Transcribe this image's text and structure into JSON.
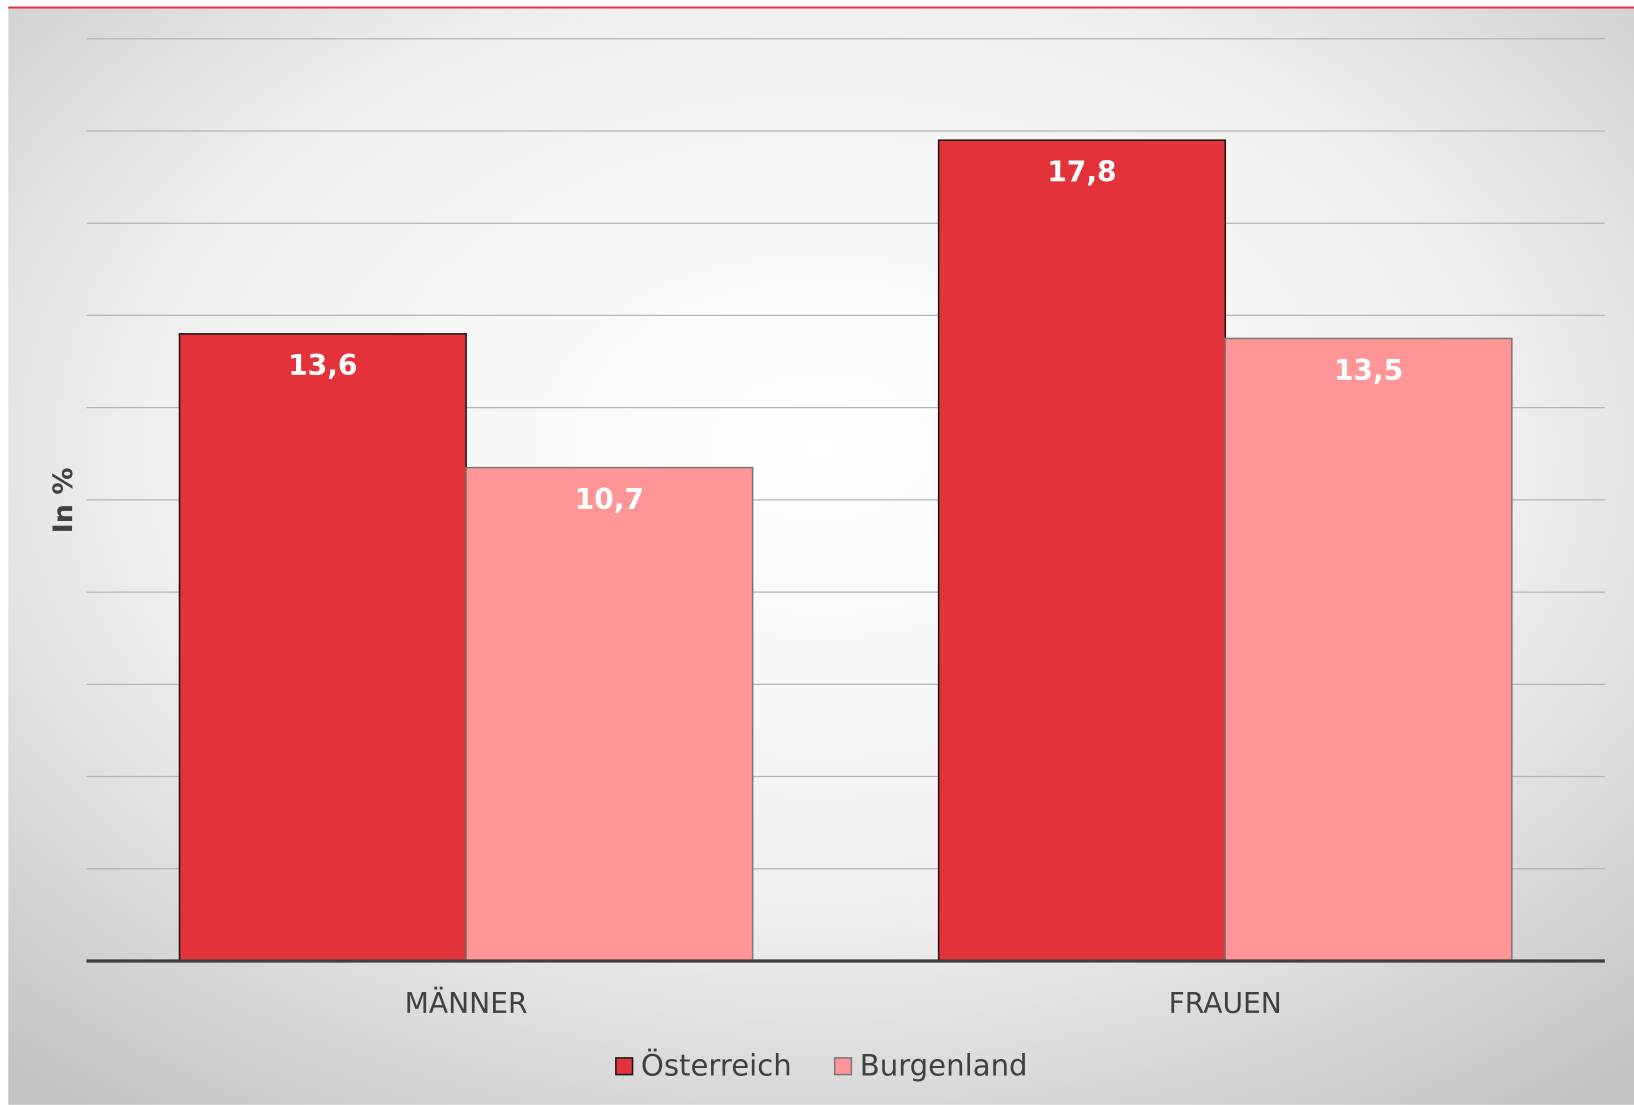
{
  "chart_data": {
    "type": "bar",
    "y_label": "In %",
    "categories": [
      "MÄNNER",
      "FRAUEN"
    ],
    "series": [
      {
        "name": "Österreich",
        "color": "#e3323a",
        "values": [
          13.6,
          17.8
        ],
        "value_labels": [
          "13,6",
          "17,8"
        ]
      },
      {
        "name": "Burgenland",
        "color": "#ff9597",
        "values": [
          10.7,
          13.5
        ],
        "value_labels": [
          "10,7",
          "13,5"
        ]
      }
    ],
    "ylim": [
      0,
      20
    ],
    "yticks": [
      0,
      2,
      4,
      6,
      8,
      10,
      12,
      14,
      16,
      18,
      20
    ],
    "grid": true,
    "legend": "bottom"
  }
}
